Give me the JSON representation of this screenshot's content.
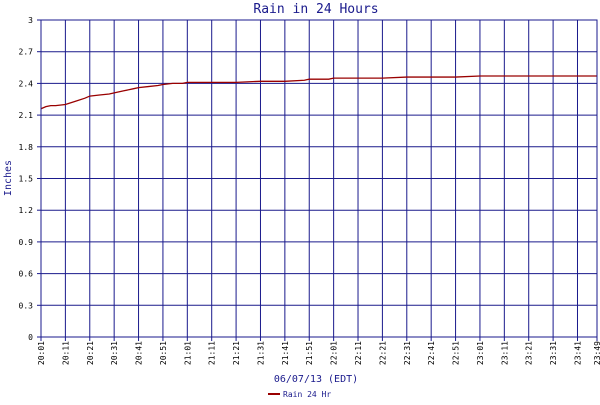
{
  "chart_data": {
    "type": "line",
    "title": "Rain in 24 Hours",
    "xlabel": "06/07/13 (EDT)",
    "ylabel": "Inches",
    "ylim": [
      0,
      3
    ],
    "yticks": [
      "0",
      "0.3",
      "0.6",
      "0.9",
      "1.2",
      "1.5",
      "1.8",
      "2.1",
      "2.4",
      "2.7",
      "3"
    ],
    "xticks": [
      "20:01",
      "20:11",
      "20:21",
      "20:31",
      "20:41",
      "20:51",
      "21:01",
      "21:11",
      "21:21",
      "21:31",
      "21:41",
      "21:51",
      "22:01",
      "22:11",
      "22:21",
      "22:31",
      "22:41",
      "22:51",
      "23:01",
      "23:11",
      "23:21",
      "23:31",
      "23:41",
      "23:49"
    ],
    "grid": true,
    "legend_position": "bottom-center",
    "colors": {
      "series": "#990000",
      "grid": "#1a1a8c",
      "frame": "#1a1a8c"
    },
    "series": [
      {
        "name": "Rain 24 Hr",
        "x": [
          "20:01",
          "20:03",
          "20:05",
          "20:07",
          "20:11",
          "20:15",
          "20:19",
          "20:21",
          "20:25",
          "20:29",
          "20:31",
          "20:35",
          "20:39",
          "20:41",
          "20:45",
          "20:49",
          "20:51",
          "20:55",
          "20:59",
          "21:01",
          "21:11",
          "21:21",
          "21:31",
          "21:41",
          "21:49",
          "21:51",
          "21:59",
          "22:01",
          "22:11",
          "22:21",
          "22:31",
          "22:41",
          "22:51",
          "23:01",
          "23:11",
          "23:21",
          "23:31",
          "23:41",
          "23:49"
        ],
        "values": [
          2.16,
          2.18,
          2.19,
          2.19,
          2.2,
          2.23,
          2.26,
          2.28,
          2.29,
          2.3,
          2.31,
          2.33,
          2.35,
          2.36,
          2.37,
          2.38,
          2.39,
          2.4,
          2.4,
          2.41,
          2.41,
          2.41,
          2.42,
          2.42,
          2.43,
          2.44,
          2.44,
          2.45,
          2.45,
          2.45,
          2.46,
          2.46,
          2.46,
          2.47,
          2.47,
          2.47,
          2.47,
          2.47,
          2.47
        ]
      }
    ]
  }
}
